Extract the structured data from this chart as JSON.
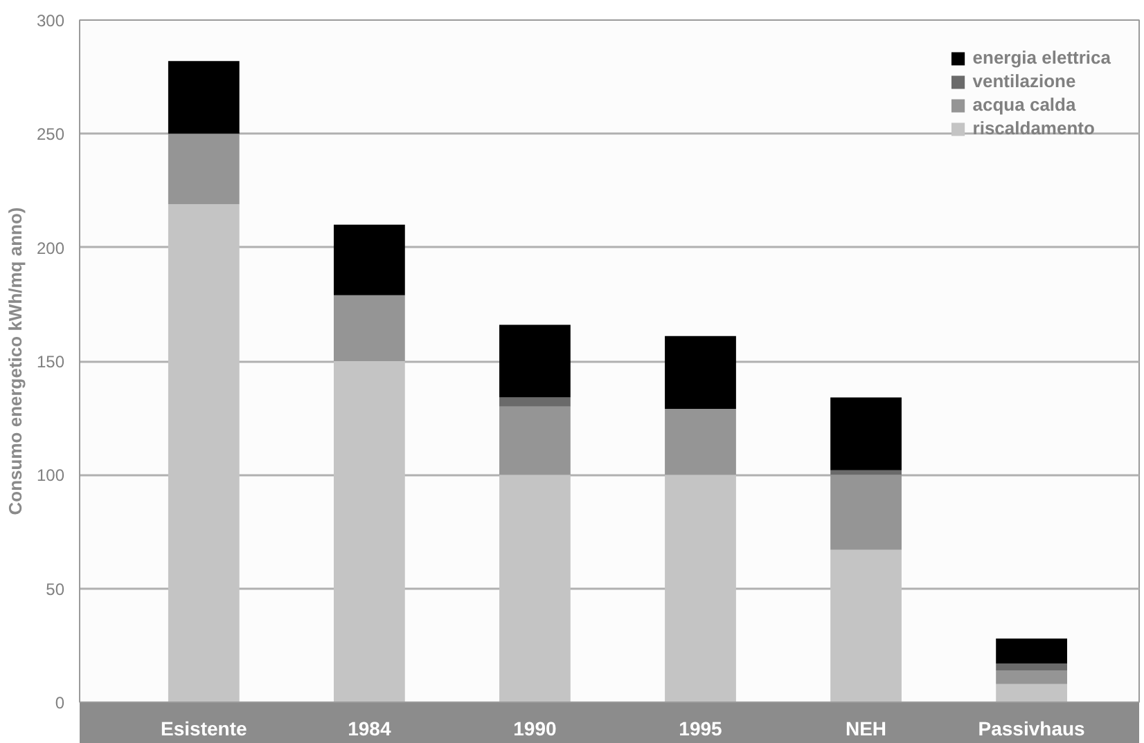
{
  "chart_data": {
    "type": "bar",
    "stacked": true,
    "ylabel": "Consumo energetico kWh/mq anno)",
    "categories": [
      "Esistente",
      "1984",
      "1990",
      "1995",
      "NEH",
      "Passivhaus"
    ],
    "series": [
      {
        "name": "riscaldamento",
        "color": "#c4c4c4",
        "values": [
          219,
          150,
          100,
          100,
          67,
          8
        ]
      },
      {
        "name": "acqua calda",
        "color": "#959595",
        "values": [
          31,
          29,
          30,
          29,
          33,
          6
        ]
      },
      {
        "name": "ventilazione",
        "color": "#6a6a6a",
        "values": [
          0,
          0,
          4,
          0,
          2,
          3
        ]
      },
      {
        "name": "energia elettrica",
        "color": "#000000",
        "values": [
          32,
          31,
          32,
          32,
          32,
          11
        ]
      }
    ],
    "ylim": [
      0,
      300
    ],
    "yticks": [
      0,
      50,
      100,
      150,
      200,
      250,
      300
    ],
    "grid": "y",
    "legend": "top right"
  }
}
